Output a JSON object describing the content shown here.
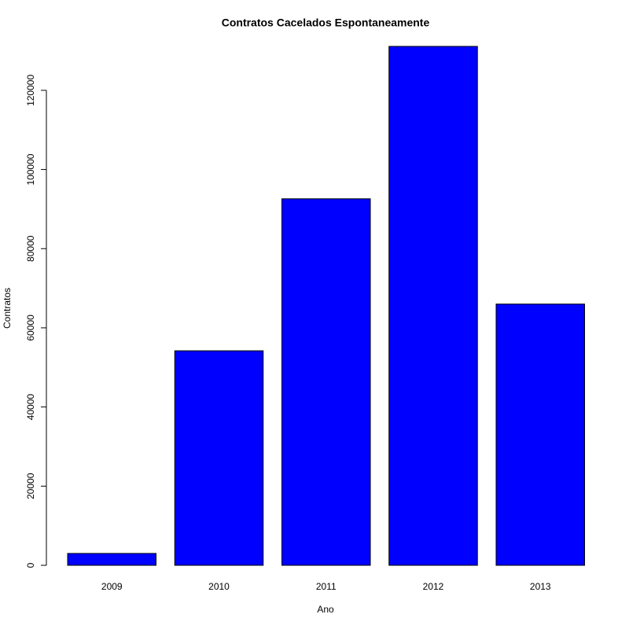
{
  "chart_data": {
    "type": "bar",
    "title": "Contratos Cacelados Espontaneamente",
    "x_label": "Ano",
    "y_label": "Contratos",
    "categories": [
      "2009",
      "2010",
      "2011",
      "2012",
      "2013"
    ],
    "values": [
      3000,
      54200,
      92600,
      131100,
      66000
    ],
    "color": "#0000ff",
    "ylim": [
      0,
      131100
    ],
    "yticks": [
      0,
      20000,
      40000,
      60000,
      80000,
      100000,
      120000
    ]
  }
}
